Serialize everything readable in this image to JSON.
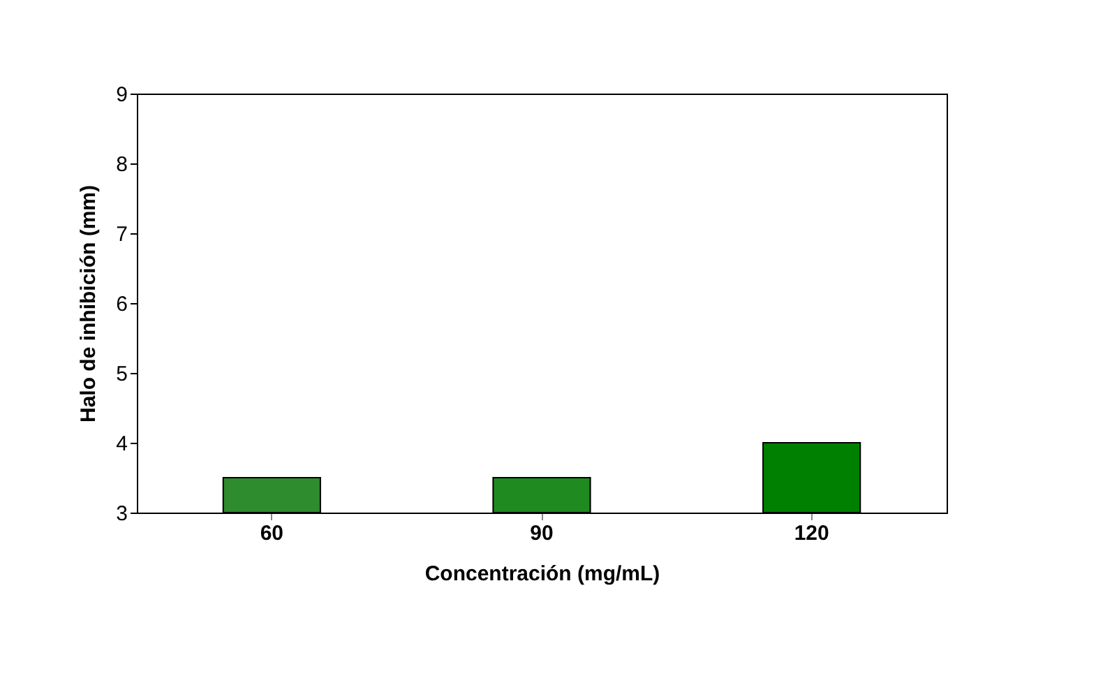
{
  "chart_data": {
    "type": "bar",
    "xlabel": "Concentración (mg/mL)",
    "ylabel": "Halo de inhibición (mm)",
    "categories": [
      "60",
      "90",
      "120"
    ],
    "values": [
      3.5,
      3.5,
      4.0
    ],
    "colors": [
      "#2e8b2e",
      "#1f8a1f",
      "#008000"
    ],
    "ylim": [
      3,
      9
    ],
    "yticks": [
      3,
      4,
      5,
      6,
      7,
      8,
      9
    ],
    "grid": false
  }
}
